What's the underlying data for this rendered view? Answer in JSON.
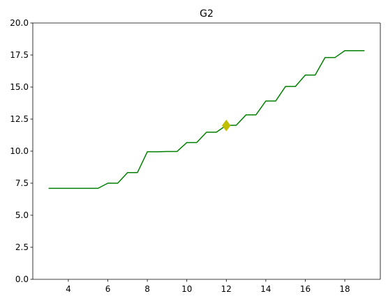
{
  "chart_data": {
    "type": "line",
    "title": "G2",
    "xlabel": "",
    "ylabel": "",
    "xlim": [
      2.2,
      19.8
    ],
    "ylim": [
      0,
      20
    ],
    "x_ticks": [
      4,
      6,
      8,
      10,
      12,
      14,
      16,
      18
    ],
    "y_ticks": [
      0,
      2.5,
      5,
      7.5,
      10,
      12.5,
      15,
      17.5,
      20
    ],
    "x_tick_labels": [
      "4",
      "6",
      "8",
      "10",
      "12",
      "14",
      "16",
      "18"
    ],
    "y_tick_labels": [
      "0.0",
      "2.5",
      "5.0",
      "7.5",
      "10.0",
      "12.5",
      "15.0",
      "17.5",
      "20.0"
    ],
    "grid": false,
    "legend": "none",
    "series": [
      {
        "color": "#008000",
        "x": [
          3,
          3.5,
          4,
          4.5,
          5,
          5.5,
          6,
          6.5,
          7,
          7.5,
          8,
          8.5,
          9,
          9.5,
          10,
          10.5,
          11,
          11.5,
          12,
          12.5,
          13,
          13.5,
          14,
          14.5,
          15,
          15.5,
          16,
          16.5,
          17,
          17.5,
          18,
          18.5,
          19
        ],
        "y": [
          7.1,
          7.1,
          7.1,
          7.1,
          7.1,
          7.1,
          7.5,
          7.5,
          8.33,
          8.33,
          9.95,
          9.95,
          9.97,
          9.97,
          10.67,
          10.67,
          11.48,
          11.48,
          12.02,
          12.02,
          12.83,
          12.83,
          13.91,
          13.91,
          15.05,
          15.05,
          15.94,
          15.94,
          17.3,
          17.3,
          17.84,
          17.84,
          17.84
        ]
      }
    ],
    "markers": [
      {
        "x": 12,
        "y": 12,
        "shape": "diamond",
        "color": "#bfbf00"
      }
    ]
  }
}
